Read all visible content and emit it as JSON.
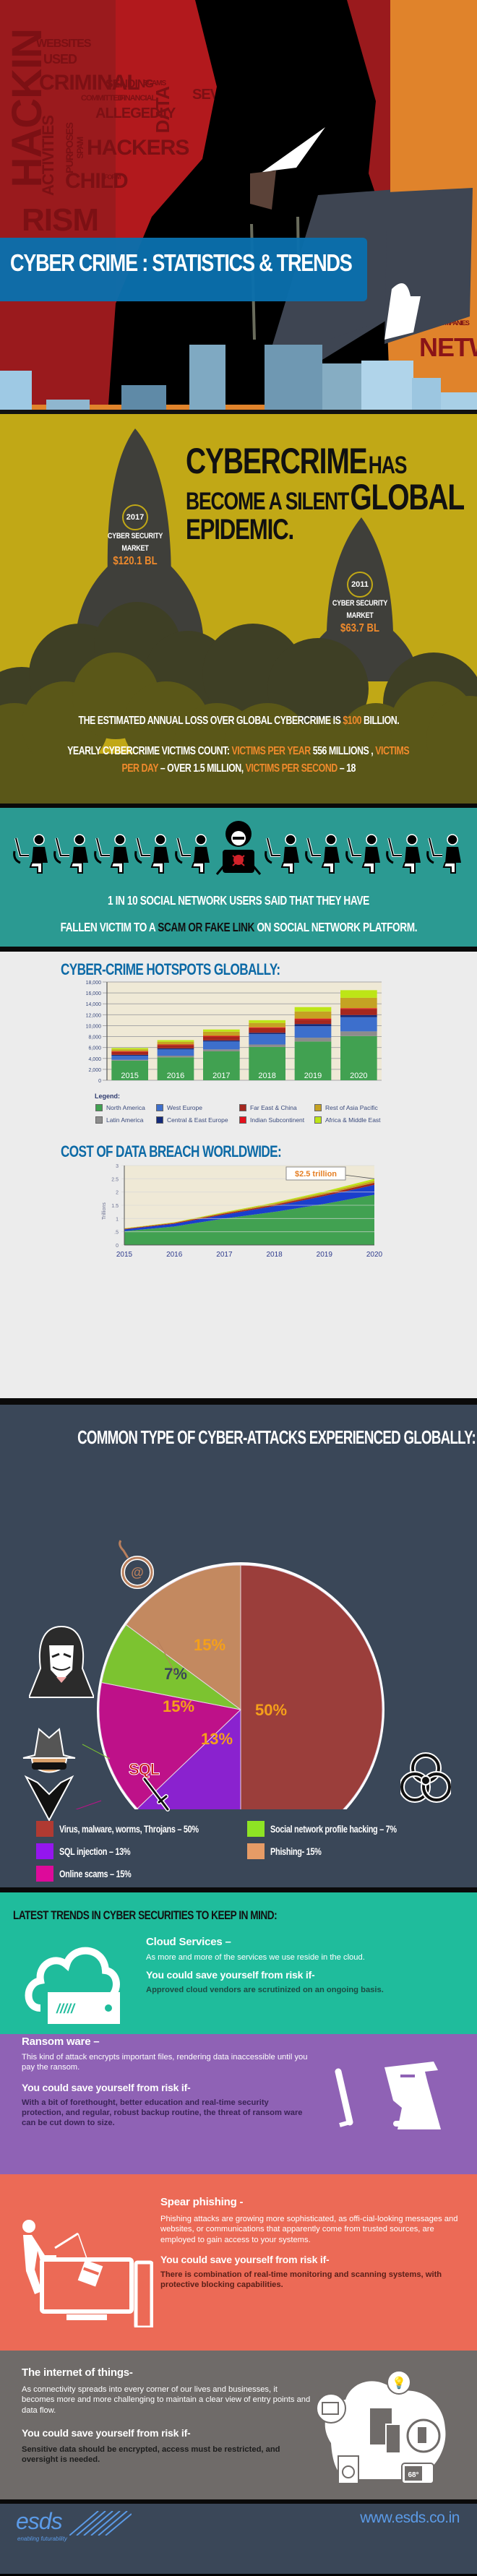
{
  "hero": {
    "title": "CYBER CRIME : STATISTICS & TRENDS",
    "background_words": [
      "HACKIN",
      "WEBSITES",
      "USED",
      "CRIMINAL",
      "SENDING",
      "COMMITTED",
      "FINANCIAL",
      "ALLEGEDLY",
      "ACTIVITIES",
      "PURPOSES",
      "SPAM",
      "HACKERS",
      "CHILD",
      "FORM",
      "DATA",
      "SCAMS",
      "KINETIC",
      "SEVERAL",
      "RISM",
      "NETWO",
      "JURISDICTIONS",
      "COMPANIES",
      "DEFENSE"
    ]
  },
  "epidemic": {
    "headline_part1": "CYBERCRIME",
    "headline_part2": "HAS",
    "headline_part3": "BECOME A SILENT",
    "headline_part4": "GLOBAL",
    "headline_part5": "EPIDEMIC.",
    "rockets": [
      {
        "year": "2017",
        "label_line1": "CYBER SECURITY",
        "label_line2": "MARKET",
        "value": "$120.1 BL"
      },
      {
        "year": "2011",
        "label_line1": "CYBER SECURITY",
        "label_line2": "MARKET",
        "value": "$63.7 BL"
      }
    ],
    "loss": {
      "prefix": "THE ESTIMATED ANNUAL LOSS OVER GLOBAL CYBERCRIME IS ",
      "highlight": "$100",
      "suffix": " BILLION."
    },
    "victims": {
      "p1": "YEARLY CYBERCRIME VICTIMS COUNT: ",
      "h1": "VICTIMS PER YEAR",
      "p2": " 556 MILLIONS , ",
      "h2": "VICTIMS PER DAY",
      "p3": " – OVER 1.5 MILLION, ",
      "h3": "VICTIMS PER SECOND",
      "p4": " – 18"
    }
  },
  "social": {
    "line1": "1 IN 10 SOCIAL NETWORK USERS SAID THAT THEY HAVE",
    "line2_a": "FALLEN VICTIM TO A ",
    "line2_b": "SCAM OR FAKE LINK",
    "line2_c": " ON SOCIAL NETWORK PLATFORM.",
    "figures_total": 11,
    "hacker_position": 5
  },
  "charts": {
    "hotspots_title": "CYBER-CRIME HOTSPOTS GLOBALLY:",
    "legend_title": "Legend:",
    "breach_title": "COST OF DATA BREACH WORLDWIDE:",
    "callout": "$2.5 trillion",
    "breach_ylabel": "Trillions"
  },
  "chart_data": [
    {
      "type": "bar",
      "stacked": true,
      "title": "CYBER-CRIME HOTSPOTS GLOBALLY:",
      "categories": [
        "2015",
        "2016",
        "2017",
        "2018",
        "2019",
        "2020"
      ],
      "ylim": [
        0,
        18000
      ],
      "yticks": [
        "0",
        "2,000",
        "4,000",
        "6,000",
        "8,000",
        "10,000",
        "12,000",
        "14,000",
        "16,000",
        "18,000"
      ],
      "grid": true,
      "legend_position": "bottom",
      "series": [
        {
          "name": "North America",
          "color": "#41a151",
          "values": [
            3600,
            4200,
            5300,
            6100,
            7100,
            8100
          ]
        },
        {
          "name": "Latin America",
          "color": "#8c8c8c",
          "values": [
            150,
            300,
            350,
            450,
            700,
            850
          ]
        },
        {
          "name": "West Europe",
          "color": "#3d6fcc",
          "values": [
            750,
            1150,
            1450,
            1900,
            2100,
            2600
          ]
        },
        {
          "name": "Central & East Europe",
          "color": "#132a7a",
          "values": [
            150,
            200,
            200,
            250,
            400,
            400
          ]
        },
        {
          "name": "Far East & China",
          "color": "#a5271e",
          "values": [
            550,
            600,
            700,
            850,
            800,
            1100
          ]
        },
        {
          "name": "Indian Subcontinent",
          "color": "#e4101b",
          "values": [
            100,
            100,
            150,
            150,
            200,
            150
          ]
        },
        {
          "name": "Rest of Asia Pacific",
          "color": "#c5a223",
          "values": [
            350,
            500,
            750,
            800,
            1300,
            1900
          ]
        },
        {
          "name": "Africa & Middle East",
          "color": "#bde516",
          "values": [
            250,
            300,
            400,
            500,
            800,
            1400
          ]
        }
      ]
    },
    {
      "type": "area",
      "stacked": true,
      "title": "COST OF DATA BREACH WORLDWIDE:",
      "x": [
        "2015",
        "2016",
        "2017",
        "2018",
        "2019",
        "2020"
      ],
      "ylabel": "Trillions",
      "ylim": [
        0,
        3
      ],
      "yticks": [
        "0",
        ".5",
        "1",
        "1.5",
        "2",
        "2.5",
        "3"
      ],
      "grid": true,
      "annotation": "$2.5 trillion",
      "series": [
        {
          "name": "North America",
          "color": "#41a151",
          "values": [
            0.52,
            0.7,
            1.0,
            1.25,
            1.55,
            1.9
          ]
        },
        {
          "name": "West Europe",
          "color": "#1a3fcc",
          "values": [
            0.07,
            0.1,
            0.15,
            0.22,
            0.3,
            0.37
          ]
        },
        {
          "name": "Far East & China",
          "color": "#a5271e",
          "values": [
            0.02,
            0.03,
            0.04,
            0.05,
            0.06,
            0.08
          ]
        },
        {
          "name": "Rest of Asia Pacific",
          "color": "#c5a223",
          "values": [
            0.01,
            0.02,
            0.03,
            0.05,
            0.06,
            0.08
          ]
        },
        {
          "name": "Africa & Middle East",
          "color": "#bde516",
          "values": [
            0.01,
            0.01,
            0.02,
            0.03,
            0.05,
            0.07
          ]
        }
      ]
    },
    {
      "type": "pie",
      "title": "COMMON TYPE OF CYBER-ATTACKS EXPERIENCED GLOBALLY:",
      "categories": [
        "Virus, malware, worms, Throjans",
        "SQL injection",
        "Online scams",
        "Social network profile hacking",
        "Phishing"
      ],
      "values": [
        50,
        13,
        15,
        7,
        15
      ],
      "colors": [
        "#9b3e3b",
        "#8a22cf",
        "#be1189",
        "#7cc330",
        "#c38960"
      ],
      "legend_position": "bottom"
    }
  ],
  "attacks": {
    "title": "COMMON TYPE OF CYBER-ATTACKS EXPERIENCED GLOBALLY:",
    "slice_labels": [
      "50%",
      "13%",
      "15%",
      "7%",
      "15%"
    ],
    "legend": [
      {
        "label": "Virus, malware, worms, Throjans – 50%",
        "color": "#b03a32"
      },
      {
        "label": "Social network profile hacking – 7%",
        "color": "#8ee324"
      },
      {
        "label": "SQL injection – 13%",
        "color": "#9416ee"
      },
      {
        "label": "Phishing- 15%",
        "color": "#e69b66"
      },
      {
        "label": "Online scams – 15%",
        "color": "#dd0a9a"
      }
    ],
    "icon_sql_text": "SQL"
  },
  "trends": {
    "title": "LATEST TRENDS IN CYBER SECURITIES TO KEEP IN MIND:",
    "items": [
      {
        "heading": "Cloud Services –",
        "body": "As more and more of the services we use reside in the cloud.",
        "save": "You could save yourself from risk if-",
        "advice": "Approved cloud vendors are scrutinized on an ongoing basis.",
        "bg": "#1fbc9c"
      },
      {
        "heading": "Ransom ware –",
        "body": "This kind of attack encrypts important files, rendering data inaccessible until you pay the ransom.",
        "save": "You could save yourself from risk if-",
        "advice": "With a bit of forethought, better education and real-time security protection, and regular, robust backup routine, the threat of ransom ware can be cut down to size.",
        "bg": "#8f62b5"
      },
      {
        "heading": "Spear phishing -",
        "body": "Phishing attacks are growing more sophisticated, as offi-cial-looking messages and websites, or communications that apparently come from trusted sources, are employed to gain access to your systems.",
        "save": "You could save yourself from risk if-",
        "advice": "There is combination of real-time monitoring and scanning systems, with protective blocking capabilities.",
        "bg": "#ec6a56"
      },
      {
        "heading": "The internet of things-",
        "body": "As connectivity spreads into every corner of our lives and businesses, it becomes more and more challenging to maintain a clear view of entry points and data flow.",
        "save": "You could save yourself from risk if-",
        "advice": "Sensitive data should be encrypted, access must be restricted, and oversight is needed.",
        "bg": "#6f6b69",
        "thermostat": "68°"
      }
    ]
  },
  "footer": {
    "logo": "esds",
    "tagline": "enabling futurability",
    "url": "www.esds.co.in"
  }
}
